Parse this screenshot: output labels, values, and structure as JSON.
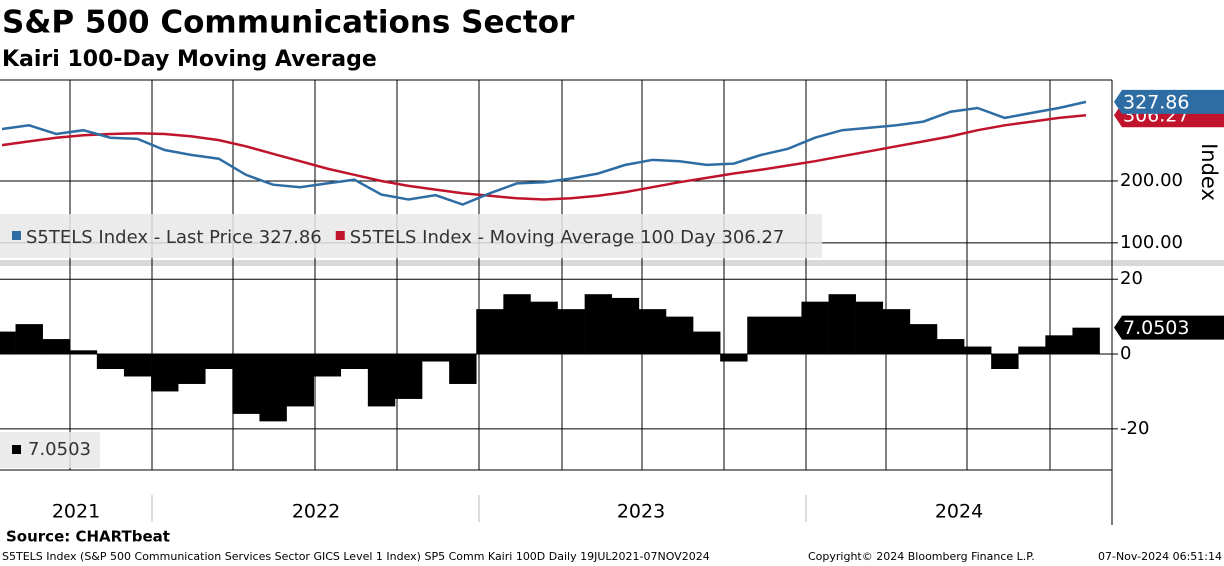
{
  "chart_data": [
    {
      "type": "line",
      "title": "S&P 500 Communications Sector",
      "subtitle": "Kairi 100-Day Moving Average",
      "y_label": "Index",
      "categories": [
        null,
        null,
        null,
        null,
        null,
        null,
        null,
        null,
        null,
        null,
        null,
        null,
        null,
        null,
        null,
        null,
        null,
        null,
        null,
        null,
        null,
        null,
        null,
        null,
        null,
        null,
        null,
        null,
        null,
        null,
        null,
        null,
        null,
        null,
        null,
        null,
        null,
        null,
        null,
        null,
        null
      ],
      "ylim": [
        69,
        360
      ],
      "yticks": [
        {
          "value": 100,
          "label": "100.00"
        },
        {
          "value": 200,
          "label": "200.00"
        }
      ],
      "grid": true,
      "series": [
        {
          "name": "S5TELS Index - Last Price 327.86",
          "color": "#2e6da4",
          "values": [
            284,
            290,
            276,
            282,
            270,
            268,
            250,
            242,
            236,
            210,
            194,
            190,
            196,
            202,
            178,
            170,
            177,
            162,
            180,
            196,
            198,
            204,
            212,
            226,
            234,
            232,
            226,
            228,
            242,
            252,
            270,
            282,
            286,
            290,
            296,
            312,
            318,
            302,
            310,
            318,
            327.86
          ]
        },
        {
          "name": "S5TELS Index - Moving Average 100 Day 306.27",
          "color": "#c0142c",
          "values": [
            258,
            264,
            270,
            274,
            276,
            277,
            276,
            272,
            266,
            256,
            244,
            232,
            220,
            210,
            200,
            192,
            186,
            180,
            176,
            172,
            170,
            172,
            176,
            182,
            190,
            198,
            205,
            212,
            218,
            225,
            232,
            240,
            248,
            256,
            264,
            272,
            282,
            290,
            296,
            302,
            306.27
          ]
        }
      ]
    },
    {
      "type": "bar",
      "categories": [
        null,
        null,
        null,
        null,
        null,
        null,
        null,
        null,
        null,
        null,
        null,
        null,
        null,
        null,
        null,
        null,
        null,
        null,
        null,
        null,
        null,
        null,
        null,
        null,
        null,
        null,
        null,
        null,
        null,
        null,
        null,
        null,
        null,
        null,
        null,
        null,
        null,
        null,
        null,
        null,
        null
      ],
      "x_axis_labels": [
        "2021",
        "2022",
        "2023",
        "2024"
      ],
      "ylim": [
        -31,
        23
      ],
      "yticks": [
        20,
        0,
        -20
      ],
      "grid": true,
      "series": [
        {
          "name": "7.0503",
          "color": "#000000",
          "values": [
            6,
            8,
            4,
            1,
            -4,
            -6,
            -10,
            -8,
            -4,
            -16,
            -18,
            -14,
            -6,
            -4,
            -14,
            -12,
            -2,
            -8,
            12,
            16,
            14,
            12,
            16,
            15,
            12,
            10,
            6,
            -2,
            10,
            10,
            14,
            16,
            14,
            12,
            8,
            4,
            2,
            -4,
            2,
            5,
            7.0503
          ]
        }
      ]
    }
  ],
  "footer": {
    "source": "Source: CHARTbeat",
    "description": "S5TELS Index (S&P 500 Communication Services Sector GICS Level 1 Index) SP5 Comm Kairi 100D  Daily 19JUL2021-07NOV2024",
    "copyright": "Copyright© 2024 Bloomberg Finance L.P.",
    "timestamp": "07-Nov-2024 06:51:14"
  }
}
